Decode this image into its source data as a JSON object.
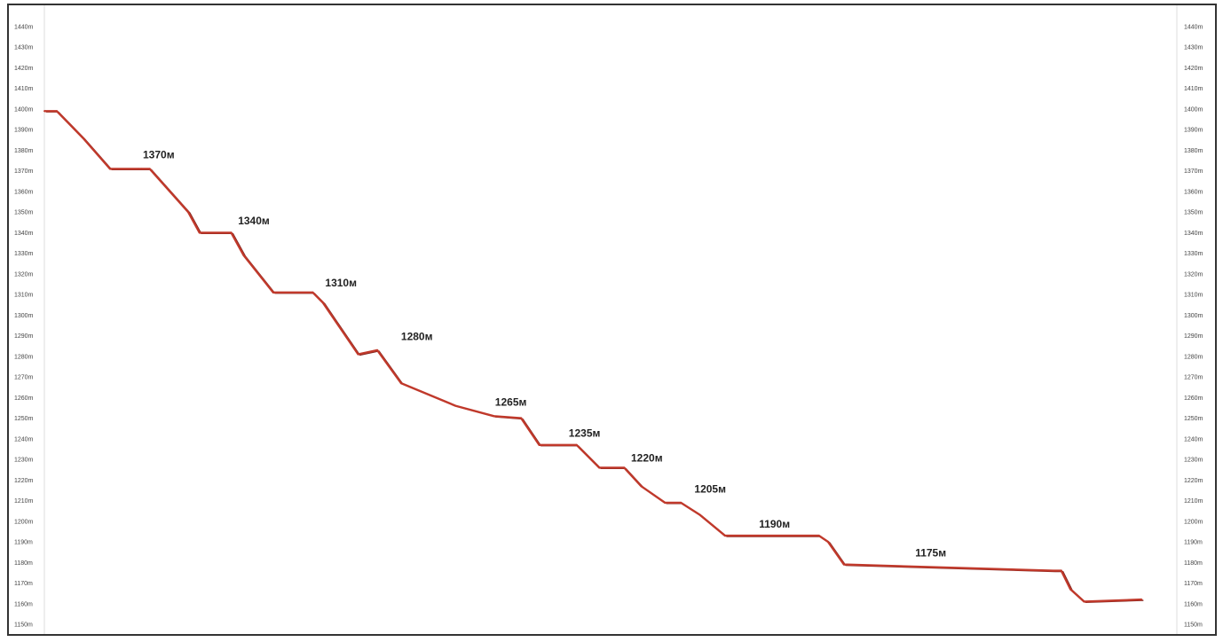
{
  "colors": {
    "line": "#c0392b",
    "line_dark": "#7b1f1a",
    "frame": "#333333",
    "background": "#ffffff"
  },
  "chart_data": {
    "type": "line",
    "title": "",
    "xlabel": "",
    "ylabel": "",
    "y_unit": "m",
    "ylim": [
      1150,
      1440
    ],
    "y_ticks": [
      1150,
      1160,
      1170,
      1180,
      1190,
      1200,
      1210,
      1220,
      1230,
      1240,
      1250,
      1260,
      1270,
      1280,
      1290,
      1300,
      1310,
      1320,
      1330,
      1340,
      1350,
      1360,
      1370,
      1380,
      1390,
      1400,
      1410,
      1420,
      1430,
      1440
    ],
    "y_tick_labels": [
      "1150m",
      "1160m",
      "1170m",
      "1180m",
      "1190m",
      "1200m",
      "1210m",
      "1220m",
      "1230m",
      "1240m",
      "1250m",
      "1260m",
      "1270m",
      "1280m",
      "1290m",
      "1300m",
      "1310m",
      "1320m",
      "1330m",
      "1340m",
      "1350m",
      "1360m",
      "1370m",
      "1380m",
      "1390m",
      "1400m",
      "1410m",
      "1420m",
      "1430m",
      "1440m"
    ],
    "grid": false,
    "axes": "y-axis labels on both left and right",
    "x_range": [
      0,
      100
    ],
    "series": [
      {
        "x": [
          0.0,
          1.1,
          3.4,
          5.8,
          8.3,
          8.6,
          9.3,
          12.7,
          13.7,
          16.5,
          17.6,
          20.2,
          23.7,
          24.6,
          27.7,
          29.4,
          31.5,
          36.3,
          39.7,
          42.1,
          43.7,
          47.0,
          49.0,
          51.2,
          52.7,
          54.8,
          56.2,
          57.9,
          60.1,
          62.3,
          63.0,
          68.4,
          69.2,
          70.6,
          89.1,
          89.8,
          90.6,
          91.8,
          96.9
        ],
        "y": [
          1399,
          1399,
          1386,
          1371,
          1371,
          1371,
          1371,
          1350,
          1340,
          1340,
          1329,
          1311,
          1311,
          1306,
          1281,
          1283,
          1267,
          1256,
          1251,
          1250,
          1237,
          1237,
          1226,
          1226,
          1217,
          1209,
          1209,
          1203,
          1193,
          1193,
          1193,
          1193,
          1190,
          1179,
          1176,
          1176,
          1167,
          1161,
          1162
        ]
      }
    ],
    "annotations": [
      {
        "text": "1370м",
        "x": 8.7,
        "y": 1376
      },
      {
        "text": "1340м",
        "x": 17.1,
        "y": 1344
      },
      {
        "text": "1310м",
        "x": 24.8,
        "y": 1314
      },
      {
        "text": "1280м",
        "x": 31.5,
        "y": 1288
      },
      {
        "text": "1265м",
        "x": 39.8,
        "y": 1256
      },
      {
        "text": "1235м",
        "x": 46.3,
        "y": 1241
      },
      {
        "text": "1220м",
        "x": 51.8,
        "y": 1229
      },
      {
        "text": "1205м",
        "x": 57.4,
        "y": 1214
      },
      {
        "text": "1190м",
        "x": 63.1,
        "y": 1197
      },
      {
        "text": "1175м",
        "x": 76.9,
        "y": 1183
      }
    ]
  }
}
